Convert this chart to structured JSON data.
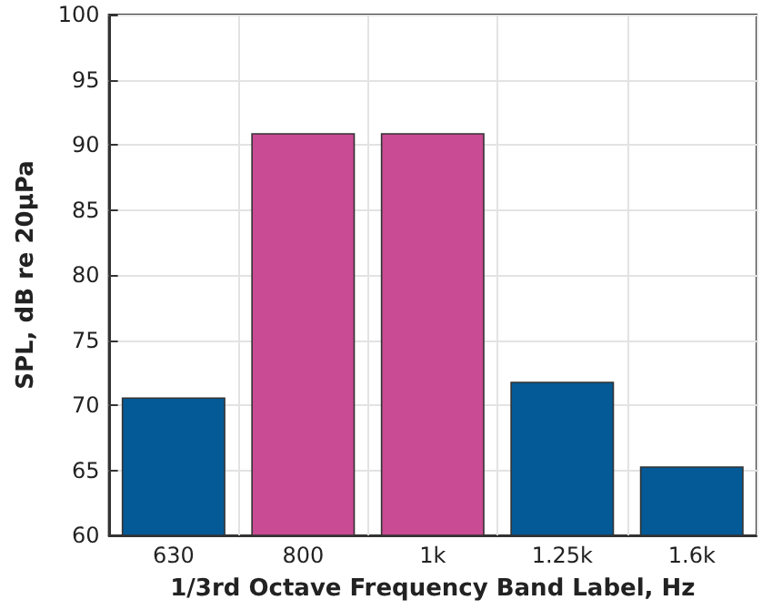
{
  "chart_data": {
    "type": "bar",
    "xlabel": "1/3rd Octave Frequency Band Label, Hz",
    "ylabel": "SPL, dB re 20μPa",
    "categories": [
      "630",
      "800",
      "1k",
      "1.25k",
      "1.6k"
    ],
    "values": [
      70.6,
      90.9,
      90.9,
      71.8,
      65.3
    ],
    "colors": [
      "#045a96",
      "#c94b93",
      "#c94b93",
      "#045a96",
      "#045a96"
    ],
    "ylim": [
      60,
      100
    ],
    "yticks": [
      60,
      65,
      70,
      75,
      80,
      85,
      90,
      95,
      100
    ],
    "grid": true
  }
}
